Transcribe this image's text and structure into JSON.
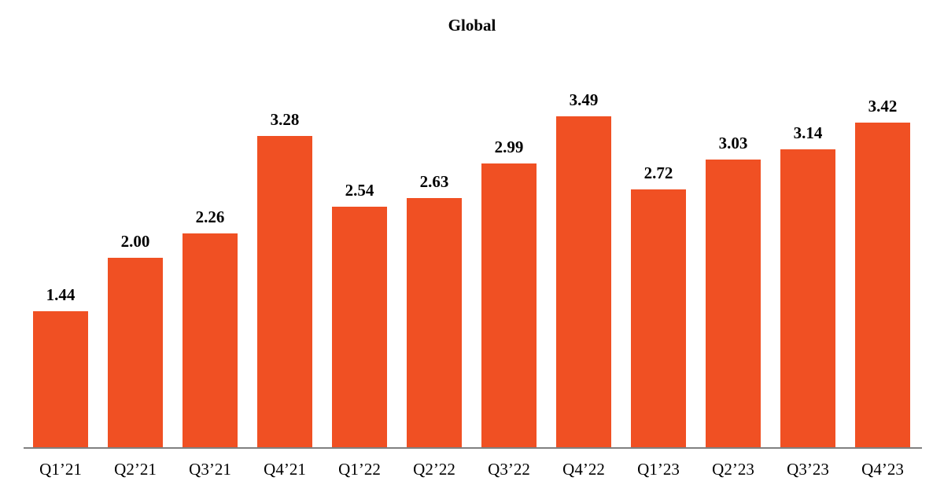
{
  "page": {
    "background_color": "#ffffff"
  },
  "chart_data": {
    "type": "bar",
    "title": "Global",
    "categories": [
      "Q1’21",
      "Q2’21",
      "Q3’21",
      "Q4’21",
      "Q1’22",
      "Q2’22",
      "Q3’22",
      "Q4’22",
      "Q1’23",
      "Q2’23",
      "Q3’23",
      "Q4’23"
    ],
    "values": [
      1.44,
      2.0,
      2.26,
      3.28,
      2.54,
      2.63,
      2.99,
      3.49,
      2.72,
      3.03,
      3.14,
      3.42
    ],
    "value_labels": [
      "1.44",
      "2.00",
      "2.26",
      "3.28",
      "2.54",
      "2.63",
      "2.99",
      "3.49",
      "2.72",
      "3.03",
      "3.14",
      "3.42"
    ],
    "xlabel": "",
    "ylabel": "",
    "ylim": [
      0,
      4
    ],
    "grid": false,
    "legend": null,
    "data_labels_position": "above-bars",
    "bar_color": "#F05023",
    "axis_line_color": "#808080",
    "text_color": "#000000"
  }
}
